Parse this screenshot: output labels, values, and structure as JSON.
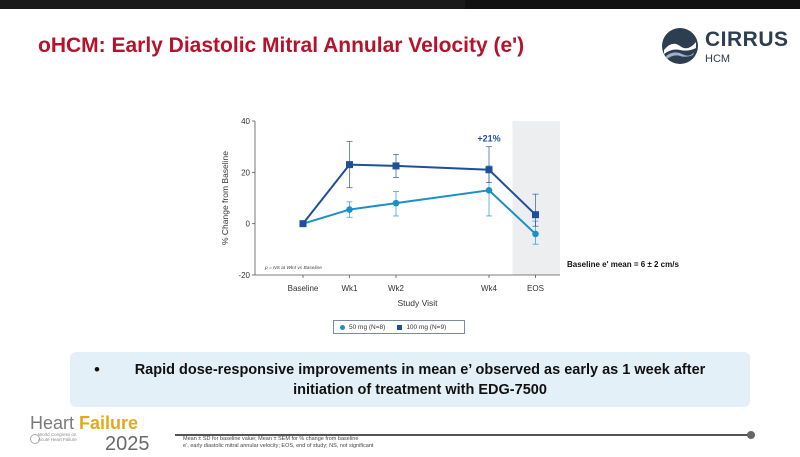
{
  "slide_title": "oHCM: Early Diastolic Mitral Annular Velocity (e')",
  "logo": {
    "name": "CIRRUS",
    "sub": "HCM"
  },
  "chart_data": {
    "type": "line",
    "categories": [
      "Baseline",
      "Wk1",
      "Wk2",
      "Wk4",
      "EOS"
    ],
    "x_positions_weeks": [
      0,
      1,
      2,
      4,
      5
    ],
    "xlabel": "Study Visit",
    "ylabel": "% Change from Baseline",
    "ylim": [
      -20,
      40
    ],
    "yticks": [
      "40",
      "20",
      "0",
      "-20"
    ],
    "grid": false,
    "shaded_category": "EOS",
    "series": [
      {
        "name": "50 mg (N=8)",
        "marker": "circle",
        "color": "#1a8fc8",
        "values": [
          0,
          5.5,
          8,
          13,
          -4
        ],
        "err_low": [
          0,
          3,
          5,
          10,
          4
        ],
        "err_high": [
          0,
          3,
          4.5,
          9.5,
          5
        ]
      },
      {
        "name": "100 mg (N=9)",
        "marker": "square",
        "color": "#1f4e9a",
        "values": [
          0,
          23,
          22.5,
          21,
          3.5
        ],
        "err_low": [
          0,
          9,
          4.5,
          5,
          4.5
        ],
        "err_high": [
          0,
          9,
          4.5,
          9,
          8
        ]
      }
    ],
    "annotations": {
      "peak_label": "+21%",
      "ns_note": "p = NS at Wk4 vs Baseline",
      "baseline_note": "Baseline e' mean = 6 ± 2 cm/s"
    }
  },
  "legend": {
    "series1": "50 mg (N=8)",
    "series2": "100 mg (N=9)"
  },
  "bullet": "Rapid dose-responsive improvements in mean e’ observed as early as 1 week after initiation of treatment with EDG-7500",
  "branding": {
    "hf_word1": "Heart ",
    "hf_word2": "Failure",
    "hf_sub1": "World Congress on",
    "hf_sub2": "Acute Heart Failure",
    "hf_year": "2025"
  },
  "footnote": {
    "line1": "Mean ± SD for baseline value; Mean ± SEM for % change from baseline",
    "line2": "e’, early diastolic mitral annular velocity; EOS, end of study; NS, not significant"
  },
  "colors": {
    "title": "#b5122b",
    "series1": "#1a8fc8",
    "series2": "#1f4e9a",
    "bullet_bg": "#e4f0f8"
  }
}
